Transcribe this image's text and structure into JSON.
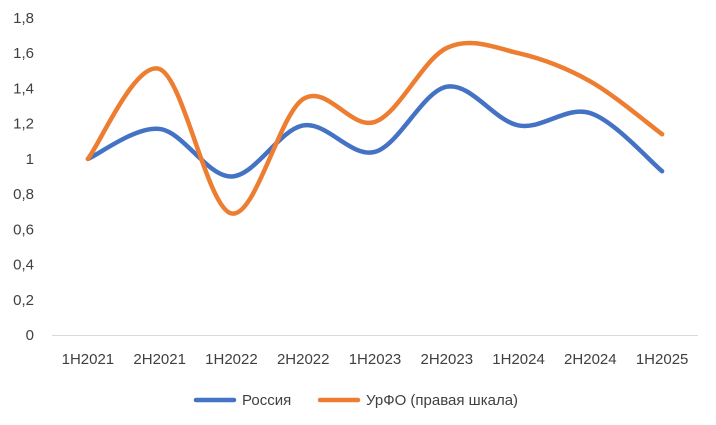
{
  "chart_data": {
    "type": "line",
    "smooth": true,
    "categories": [
      "1H2021",
      "2H2021",
      "1H2022",
      "2H2022",
      "1H2023",
      "2H2023",
      "1H2024",
      "2H2024",
      "1H2025"
    ],
    "series": [
      {
        "name": "Россия",
        "color": "#4472C4",
        "values": [
          1.0,
          1.17,
          0.9,
          1.19,
          1.04,
          1.41,
          1.19,
          1.26,
          0.93
        ]
      },
      {
        "name": "УрФО (правая шкала)",
        "color": "#ED7D31",
        "values": [
          1.0,
          1.51,
          0.69,
          1.34,
          1.21,
          1.63,
          1.6,
          1.44,
          1.14
        ]
      }
    ],
    "ylim": [
      0,
      1.8
    ],
    "yticks": [
      "0",
      "0,2",
      "0,4",
      "0,6",
      "0,8",
      "1",
      "1,2",
      "1,4",
      "1,6",
      "1,8"
    ],
    "grid": false,
    "legend": "bottom"
  }
}
